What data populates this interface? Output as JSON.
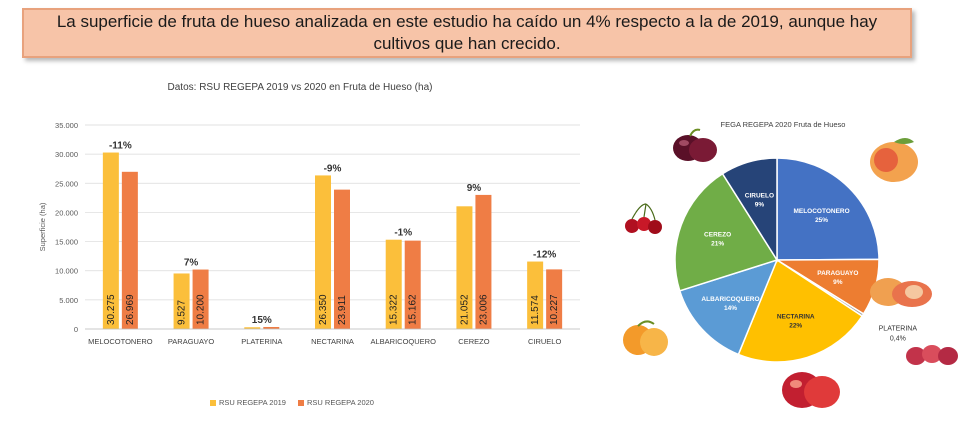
{
  "headline": "La superficie de fruta de hueso analizada en este estudio ha caído un 4% respecto a la de 2019, aunque hay cultivos que han crecido.",
  "colors": {
    "s2019": "#fbbf3b",
    "s2020": "#ef7d45"
  },
  "chart_data": [
    {
      "type": "bar",
      "title": "Datos: RSU REGEPA 2019 vs 2020 en Fruta de Hueso (ha)",
      "ylabel": "Superficie (ha)",
      "ylim": [
        0,
        35000
      ],
      "y_ticks": [
        "0",
        "5.000",
        "10.000",
        "15.000",
        "20.000",
        "25.000",
        "30.000",
        "35.000"
      ],
      "grid": true,
      "legend": "bottom",
      "categories": [
        "MELOCOTONERO",
        "PARAGUAYO",
        "PLATERINA",
        "NECTARINA",
        "ALBARICOQUERO",
        "CEREZO",
        "CIRUELO"
      ],
      "series": [
        {
          "name": "RSU REGEPA 2019",
          "values": [
            30275,
            9527,
            300,
            26350,
            15322,
            21052,
            11574
          ],
          "labels": [
            "30.275",
            "9.527",
            "",
            "26.350",
            "15.322",
            "21.052",
            "11.574"
          ]
        },
        {
          "name": "RSU REGEPA 2020",
          "values": [
            26969,
            10200,
            345,
            23911,
            15162,
            23006,
            10227
          ],
          "labels": [
            "26.969",
            "10.200",
            "",
            "23.911",
            "15.162",
            "23.006",
            "10.227"
          ]
        }
      ],
      "changes": [
        "-11%",
        "7%",
        "15%",
        "-9%",
        "-1%",
        "9%",
        "-12%"
      ]
    },
    {
      "type": "pie",
      "title": "FEGA REGEPA 2020 Fruta de Hueso",
      "slices": [
        {
          "label": "MELOCOTONERO",
          "pct_label": "25%",
          "value": 25,
          "color": "#4472c4"
        },
        {
          "label": "PARAGUAYO",
          "pct_label": "9%",
          "value": 9,
          "color": "#ed7d31"
        },
        {
          "label": "PLATERINA",
          "pct_label": "0,4%",
          "value": 0.4,
          "color": "#a5a5a5"
        },
        {
          "label": "NECTARINA",
          "pct_label": "22%",
          "value": 22,
          "color": "#ffc000"
        },
        {
          "label": "ALBARICOQUERO",
          "pct_label": "14%",
          "value": 14,
          "color": "#5b9bd5"
        },
        {
          "label": "CEREZO",
          "pct_label": "21%",
          "value": 21,
          "color": "#70ad47"
        },
        {
          "label": "CIRUELO",
          "pct_label": "9%",
          "value": 9,
          "color": "#264478"
        }
      ]
    }
  ]
}
